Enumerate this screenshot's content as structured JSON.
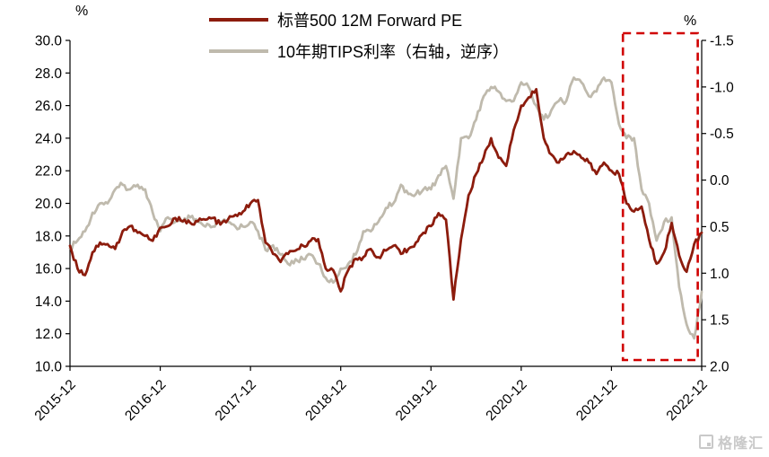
{
  "legend": {
    "items": [
      {
        "label": "标普500 12M Forward PE",
        "color": "#8C1C0D"
      },
      {
        "label": "10年期TIPS利率（右轴，逆序）",
        "color": "#BFBAAD"
      }
    ]
  },
  "watermark": {
    "text": "格隆汇"
  },
  "chart_data": {
    "type": "line",
    "grid": false,
    "legend_position": "top",
    "x": [
      "2015-12",
      "2016-01",
      "2016-02",
      "2016-03",
      "2016-04",
      "2016-05",
      "2016-06",
      "2016-07",
      "2016-08",
      "2016-09",
      "2016-10",
      "2016-11",
      "2016-12",
      "2017-01",
      "2017-02",
      "2017-03",
      "2017-04",
      "2017-05",
      "2017-06",
      "2017-07",
      "2017-08",
      "2017-09",
      "2017-10",
      "2017-11",
      "2017-12",
      "2018-01",
      "2018-02",
      "2018-03",
      "2018-04",
      "2018-05",
      "2018-06",
      "2018-07",
      "2018-08",
      "2018-09",
      "2018-10",
      "2018-11",
      "2018-12",
      "2019-01",
      "2019-02",
      "2019-03",
      "2019-04",
      "2019-05",
      "2019-06",
      "2019-07",
      "2019-08",
      "2019-09",
      "2019-10",
      "2019-11",
      "2019-12",
      "2020-01",
      "2020-02",
      "2020-03",
      "2020-04",
      "2020-05",
      "2020-06",
      "2020-07",
      "2020-08",
      "2020-09",
      "2020-10",
      "2020-11",
      "2020-12",
      "2021-01",
      "2021-02",
      "2021-03",
      "2021-04",
      "2021-05",
      "2021-06",
      "2021-07",
      "2021-08",
      "2021-09",
      "2021-10",
      "2021-11",
      "2021-12",
      "2022-01",
      "2022-02",
      "2022-03",
      "2022-04",
      "2022-05",
      "2022-06",
      "2022-07",
      "2022-08",
      "2022-09",
      "2022-10",
      "2022-11",
      "2022-12"
    ],
    "series": [
      {
        "name": "标普500 12M Forward PE",
        "axis": "left",
        "color": "#8C1C0D",
        "values": [
          17.4,
          16.0,
          15.6,
          17.0,
          17.6,
          17.5,
          17.2,
          18.3,
          18.6,
          18.2,
          18.0,
          17.7,
          18.5,
          18.6,
          19.1,
          18.9,
          18.8,
          18.9,
          19.0,
          19.1,
          18.7,
          19.0,
          19.3,
          19.5,
          20.0,
          20.2,
          17.6,
          16.9,
          16.4,
          16.9,
          17.1,
          17.4,
          17.7,
          17.8,
          16.0,
          15.9,
          14.6,
          15.9,
          16.6,
          16.7,
          17.2,
          16.7,
          17.1,
          17.4,
          16.9,
          17.2,
          17.6,
          18.2,
          18.6,
          19.4,
          19.0,
          14.1,
          17.8,
          20.5,
          21.8,
          22.8,
          24.0,
          22.8,
          22.3,
          24.5,
          26.0,
          26.5,
          27.0,
          24.0,
          23.0,
          22.5,
          23.0,
          23.2,
          22.8,
          22.5,
          21.8,
          22.5,
          22.0,
          21.8,
          20.0,
          19.5,
          19.8,
          17.8,
          16.3,
          17.0,
          18.8,
          16.8,
          15.8,
          17.5,
          18.2
        ]
      },
      {
        "name": "10年期TIPS利率（右轴，逆序）",
        "axis": "right",
        "color": "#BFBAAD",
        "values": [
          0.73,
          0.65,
          0.55,
          0.35,
          0.25,
          0.25,
          0.1,
          0.05,
          0.1,
          0.05,
          0.1,
          0.35,
          0.55,
          0.4,
          0.45,
          0.45,
          0.4,
          0.45,
          0.5,
          0.5,
          0.45,
          0.45,
          0.5,
          0.5,
          0.45,
          0.55,
          0.75,
          0.7,
          0.8,
          0.9,
          0.85,
          0.85,
          0.8,
          0.9,
          1.05,
          1.1,
          0.95,
          0.9,
          0.8,
          0.55,
          0.55,
          0.45,
          0.3,
          0.25,
          0.05,
          0.15,
          0.15,
          0.1,
          0.1,
          -0.05,
          -0.15,
          0.2,
          -0.45,
          -0.45,
          -0.65,
          -0.9,
          -1.0,
          -0.95,
          -0.85,
          -0.85,
          -1.05,
          -1.0,
          -0.8,
          -0.65,
          -0.75,
          -0.85,
          -0.85,
          -1.1,
          -1.05,
          -0.9,
          -0.95,
          -1.1,
          -1.05,
          -0.6,
          -0.45,
          -0.45,
          0.1,
          0.25,
          0.65,
          0.45,
          0.4,
          1.15,
          1.55,
          1.7,
          1.2
        ]
      }
    ],
    "left_axis": {
      "unit": "%",
      "min": 10,
      "max": 30,
      "tick_labels": [
        "30.0",
        "28.0",
        "26.0",
        "24.0",
        "22.0",
        "20.0",
        "18.0",
        "16.0",
        "14.0",
        "12.0",
        "10.0"
      ]
    },
    "right_axis": {
      "unit": "%",
      "min": -1.5,
      "max": 2.0,
      "inverted": true,
      "tick_labels": [
        "-1.5",
        "-1.0",
        "-0.5",
        "0.0",
        "0.5",
        "1.0",
        "1.5",
        "2.0"
      ]
    },
    "x_tick_labels": [
      "2015-12",
      "2016-12",
      "2017-12",
      "2018-12",
      "2019-12",
      "2020-12",
      "2021-12",
      "2022-12"
    ],
    "highlight_box": {
      "x_from": "2022-02",
      "x_to": "2022-11",
      "color": "#D00000"
    }
  }
}
